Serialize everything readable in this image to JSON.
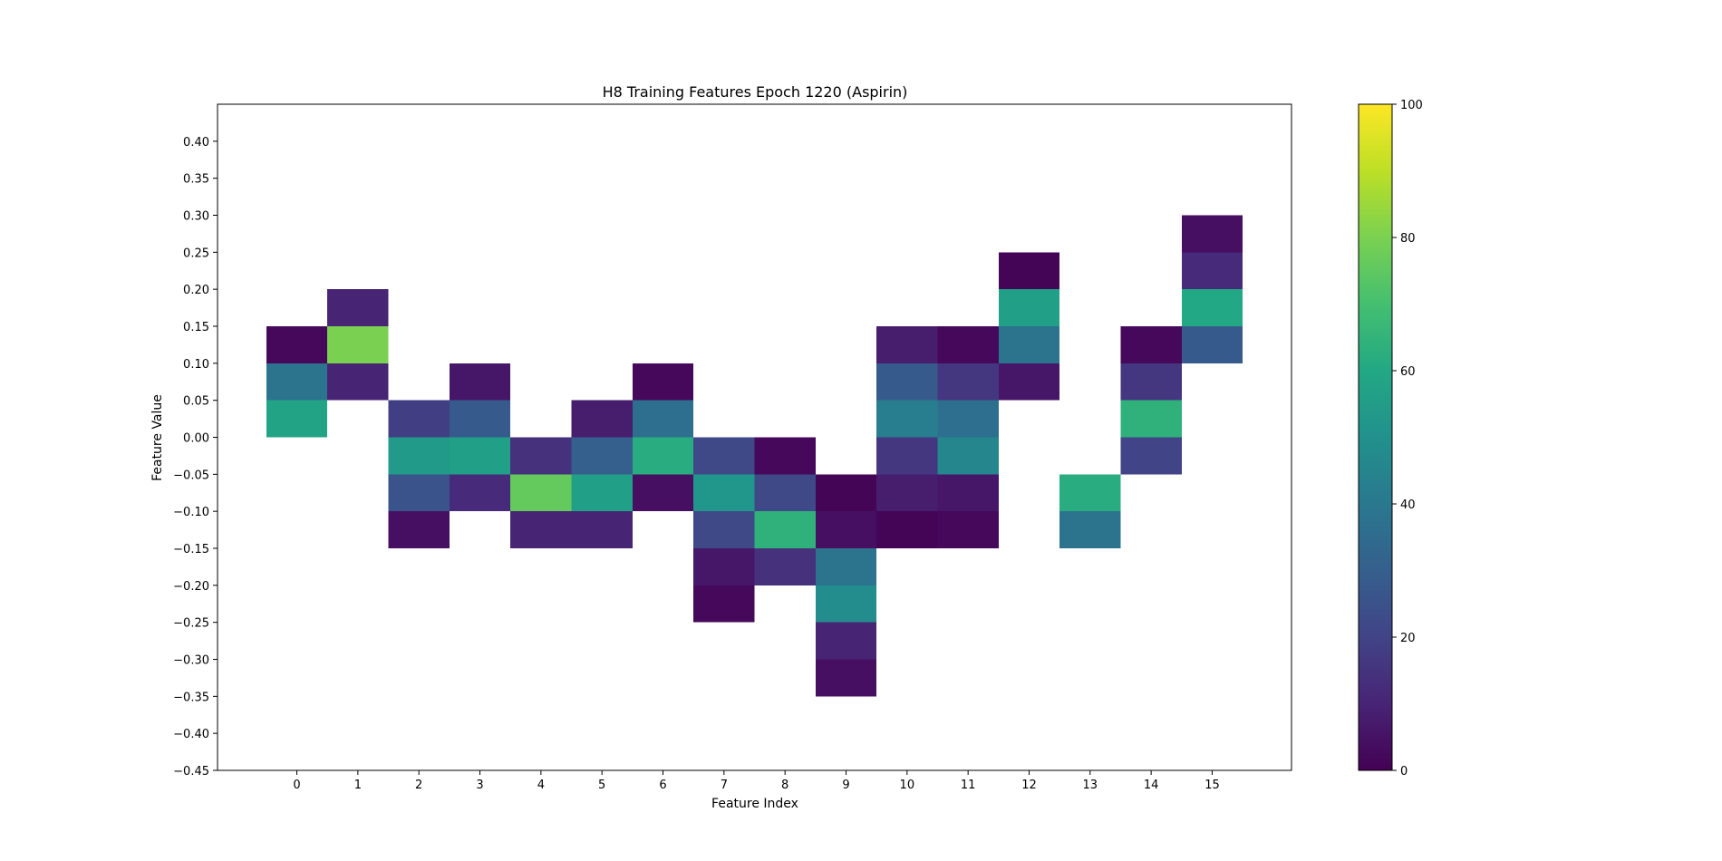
{
  "chart_data": {
    "type": "heatmap",
    "title": "H8 Training Features Epoch 1220 (Aspirin)",
    "xlabel": "Feature Index",
    "ylabel": "Feature Value",
    "x_ticks": [
      0,
      1,
      2,
      3,
      4,
      5,
      6,
      7,
      8,
      9,
      10,
      11,
      12,
      13,
      14,
      15
    ],
    "y_ticks": [
      "0.40",
      "0.35",
      "0.30",
      "0.25",
      "0.20",
      "0.15",
      "0.10",
      "0.05",
      "0.00",
      "−0.05",
      "−0.10",
      "−0.15",
      "−0.20",
      "−0.25",
      "−0.30",
      "−0.35",
      "−0.40",
      "−0.45"
    ],
    "xlim": [
      -1.3,
      16.3
    ],
    "ylim": [
      -0.45,
      0.45
    ],
    "bin_height": 0.05,
    "colormap": "viridis",
    "color_range": [
      0,
      100
    ],
    "colorbar_ticks": [
      "0",
      "20",
      "40",
      "60",
      "80",
      "100"
    ],
    "grid": false,
    "cells": [
      {
        "x": 0,
        "y0": 0.1,
        "value": 2
      },
      {
        "x": 0,
        "y0": 0.05,
        "value": 38
      },
      {
        "x": 0,
        "y0": 0.0,
        "value": 58
      },
      {
        "x": 1,
        "y0": 0.15,
        "value": 10
      },
      {
        "x": 1,
        "y0": 0.1,
        "value": 80
      },
      {
        "x": 1,
        "y0": 0.05,
        "value": 10
      },
      {
        "x": 2,
        "y0": 0.0,
        "value": 18
      },
      {
        "x": 2,
        "y0": -0.05,
        "value": 54
      },
      {
        "x": 2,
        "y0": -0.1,
        "value": 26
      },
      {
        "x": 2,
        "y0": -0.15,
        "value": 4
      },
      {
        "x": 3,
        "y0": 0.05,
        "value": 6
      },
      {
        "x": 3,
        "y0": 0.0,
        "value": 28
      },
      {
        "x": 3,
        "y0": -0.05,
        "value": 56
      },
      {
        "x": 3,
        "y0": -0.1,
        "value": 12
      },
      {
        "x": 4,
        "y0": -0.05,
        "value": 14
      },
      {
        "x": 4,
        "y0": -0.1,
        "value": 76
      },
      {
        "x": 4,
        "y0": -0.15,
        "value": 10
      },
      {
        "x": 5,
        "y0": 0.0,
        "value": 8
      },
      {
        "x": 5,
        "y0": -0.05,
        "value": 30
      },
      {
        "x": 5,
        "y0": -0.1,
        "value": 56
      },
      {
        "x": 5,
        "y0": -0.15,
        "value": 10
      },
      {
        "x": 6,
        "y0": 0.05,
        "value": 2
      },
      {
        "x": 6,
        "y0": 0.0,
        "value": 36
      },
      {
        "x": 6,
        "y0": -0.05,
        "value": 62
      },
      {
        "x": 6,
        "y0": -0.1,
        "value": 4
      },
      {
        "x": 7,
        "y0": -0.05,
        "value": 22
      },
      {
        "x": 7,
        "y0": -0.1,
        "value": 52
      },
      {
        "x": 7,
        "y0": -0.15,
        "value": 22
      },
      {
        "x": 7,
        "y0": -0.2,
        "value": 6
      },
      {
        "x": 7,
        "y0": -0.25,
        "value": 2
      },
      {
        "x": 8,
        "y0": -0.05,
        "value": 2
      },
      {
        "x": 8,
        "y0": -0.1,
        "value": 22
      },
      {
        "x": 8,
        "y0": -0.15,
        "value": 64
      },
      {
        "x": 8,
        "y0": -0.2,
        "value": 14
      },
      {
        "x": 9,
        "y0": -0.1,
        "value": 1
      },
      {
        "x": 9,
        "y0": -0.15,
        "value": 4
      },
      {
        "x": 9,
        "y0": -0.2,
        "value": 38
      },
      {
        "x": 9,
        "y0": -0.25,
        "value": 48
      },
      {
        "x": 9,
        "y0": -0.3,
        "value": 10
      },
      {
        "x": 9,
        "y0": -0.35,
        "value": 4
      },
      {
        "x": 10,
        "y0": 0.1,
        "value": 8
      },
      {
        "x": 10,
        "y0": 0.05,
        "value": 28
      },
      {
        "x": 10,
        "y0": 0.0,
        "value": 42
      },
      {
        "x": 10,
        "y0": -0.05,
        "value": 16
      },
      {
        "x": 10,
        "y0": -0.1,
        "value": 8
      },
      {
        "x": 10,
        "y0": -0.15,
        "value": 1
      },
      {
        "x": 11,
        "y0": 0.1,
        "value": 2
      },
      {
        "x": 11,
        "y0": 0.05,
        "value": 16
      },
      {
        "x": 11,
        "y0": 0.0,
        "value": 36
      },
      {
        "x": 11,
        "y0": -0.05,
        "value": 46
      },
      {
        "x": 11,
        "y0": -0.1,
        "value": 6
      },
      {
        "x": 11,
        "y0": -0.15,
        "value": 2
      },
      {
        "x": 12,
        "y0": 0.2,
        "value": 1
      },
      {
        "x": 12,
        "y0": 0.15,
        "value": 56
      },
      {
        "x": 12,
        "y0": 0.1,
        "value": 38
      },
      {
        "x": 12,
        "y0": 0.05,
        "value": 6
      },
      {
        "x": 13,
        "y0": -0.1,
        "value": 62
      },
      {
        "x": 13,
        "y0": -0.15,
        "value": 38
      },
      {
        "x": 14,
        "y0": 0.1,
        "value": 2
      },
      {
        "x": 14,
        "y0": 0.05,
        "value": 16
      },
      {
        "x": 14,
        "y0": 0.0,
        "value": 64
      },
      {
        "x": 14,
        "y0": -0.05,
        "value": 20
      },
      {
        "x": 15,
        "y0": 0.25,
        "value": 4
      },
      {
        "x": 15,
        "y0": 0.2,
        "value": 12
      },
      {
        "x": 15,
        "y0": 0.15,
        "value": 60
      },
      {
        "x": 15,
        "y0": 0.1,
        "value": 28
      }
    ]
  }
}
